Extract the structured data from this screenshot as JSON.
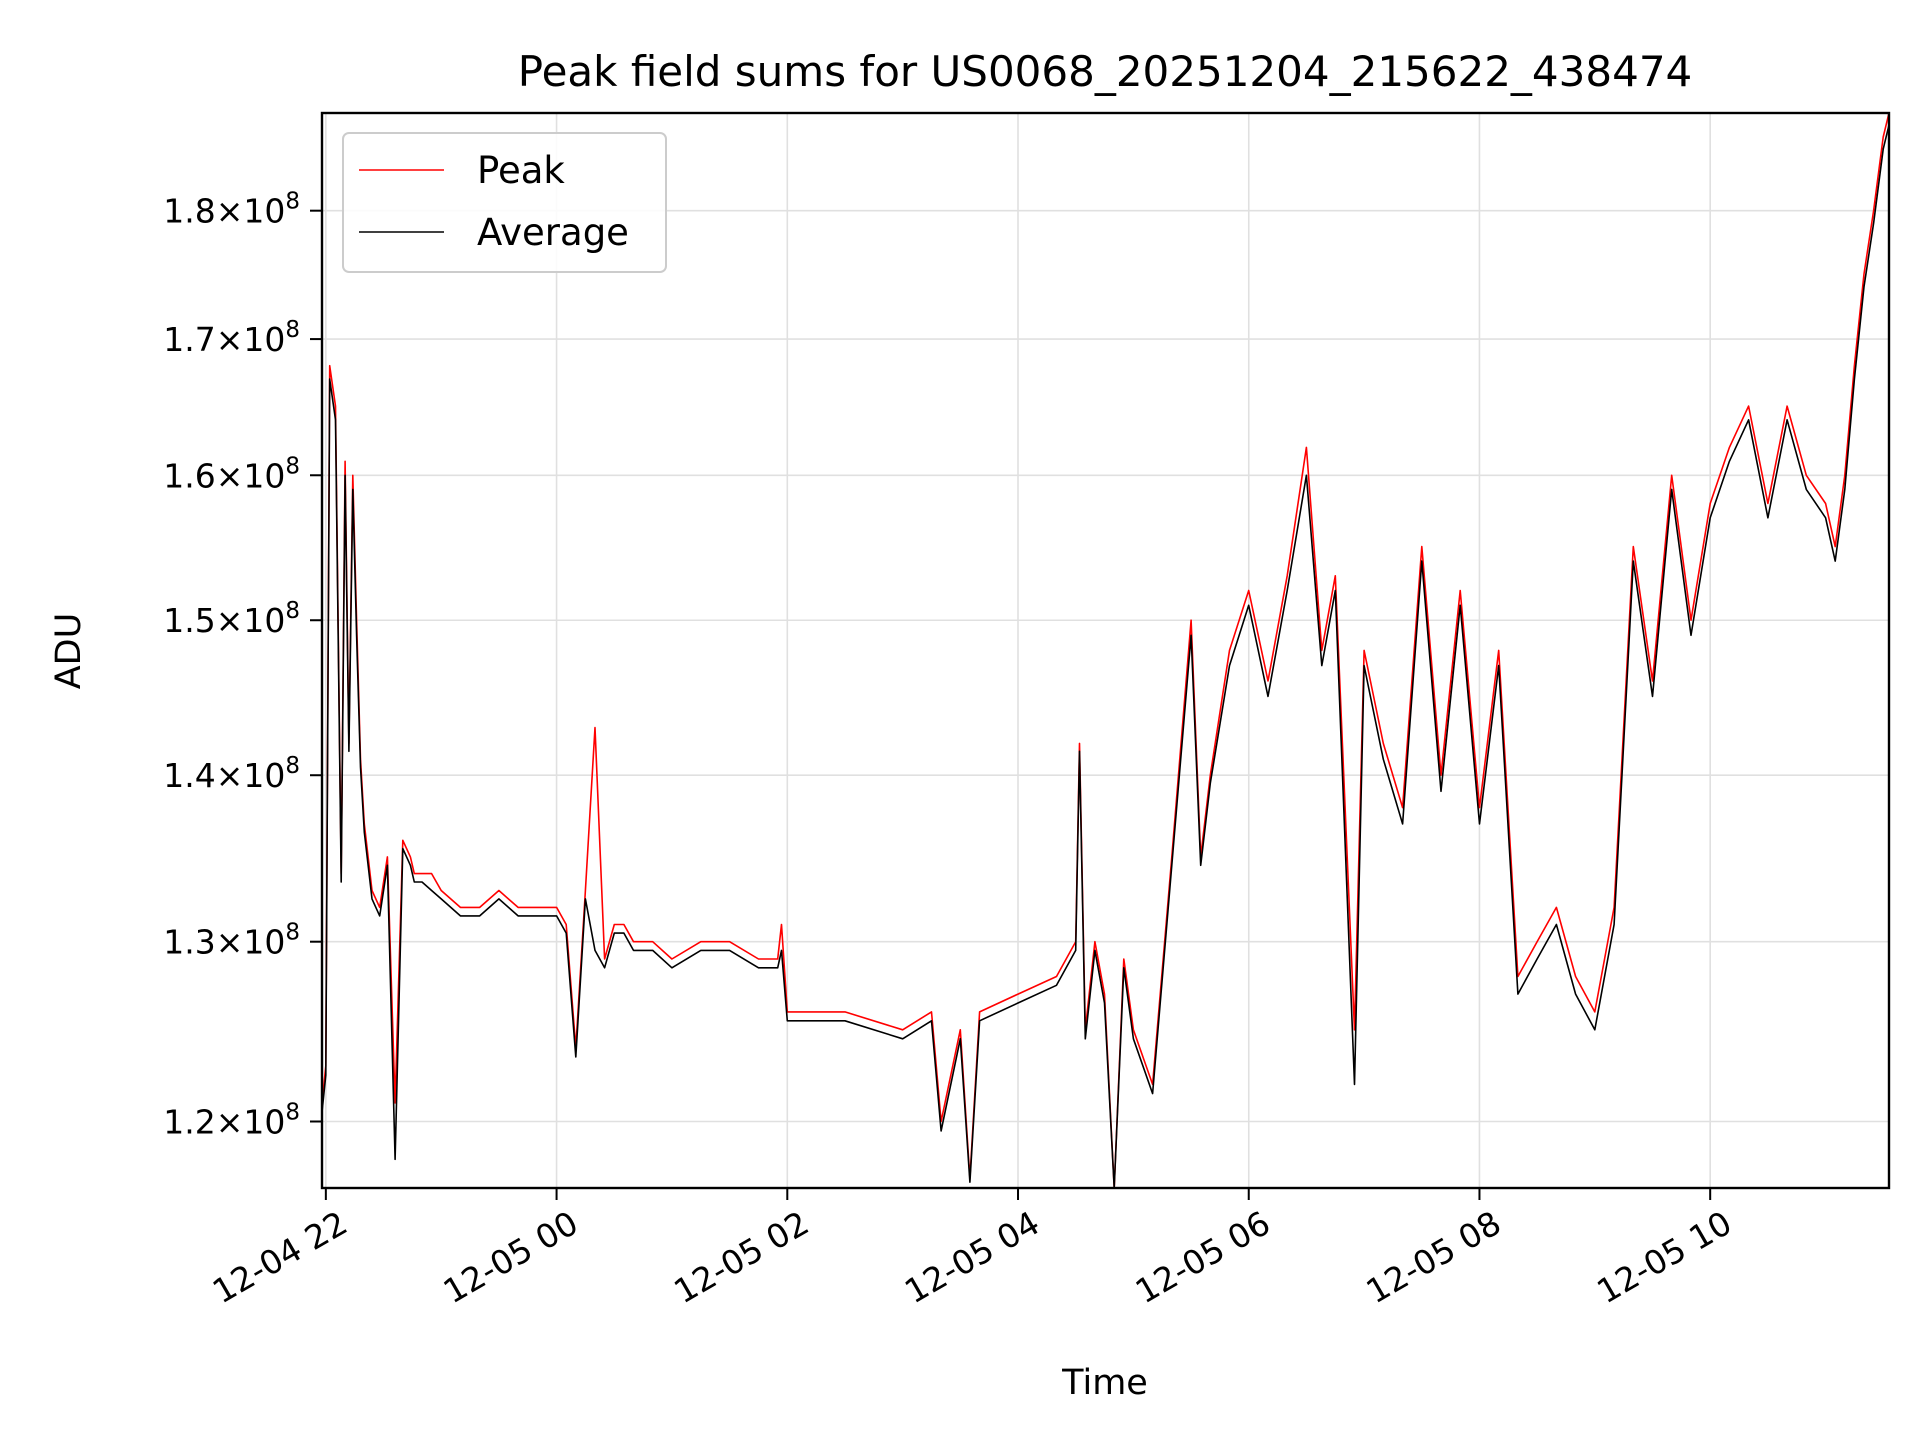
{
  "chart_data": {
    "type": "line",
    "title": "Peak field sums for US0068_20251204_215622_438474",
    "xlabel": "Time",
    "ylabel": "ADU",
    "y_scale": "log",
    "ylim": [
      116500000,
      188000000
    ],
    "xlim": [
      "12-04 21:58",
      "12-05 11:33"
    ],
    "grid": true,
    "legend": {
      "placement": "upper-left",
      "entries": [
        "Peak",
        "Average"
      ]
    },
    "colors": {
      "Peak": "#ff0000",
      "Average": "#000000",
      "grid": "#e0e0e0"
    },
    "x_ticks": [
      {
        "t": "12-04 22:00",
        "label": "12-04 22"
      },
      {
        "t": "12-05 00:00",
        "label": "12-05 00"
      },
      {
        "t": "12-05 02:00",
        "label": "12-05 02"
      },
      {
        "t": "12-05 04:00",
        "label": "12-05 04"
      },
      {
        "t": "12-05 06:00",
        "label": "12-05 06"
      },
      {
        "t": "12-05 08:00",
        "label": "12-05 08"
      },
      {
        "t": "12-05 10:00",
        "label": "12-05 10"
      }
    ],
    "y_ticks": [
      {
        "value": 120000000,
        "mantissa": "1.2",
        "exponent": "8"
      },
      {
        "value": 130000000,
        "mantissa": "1.3",
        "exponent": "8"
      },
      {
        "value": 140000000,
        "mantissa": "1.4",
        "exponent": "8"
      },
      {
        "value": 150000000,
        "mantissa": "1.5",
        "exponent": "8"
      },
      {
        "value": 160000000,
        "mantissa": "1.6",
        "exponent": "8"
      },
      {
        "value": 170000000,
        "mantissa": "1.7",
        "exponent": "8"
      },
      {
        "value": 180000000,
        "mantissa": "1.8",
        "exponent": "8"
      }
    ],
    "series": [
      {
        "name": "Peak",
        "x": [
          "12-04 21:58",
          "12-04 22:00",
          "12-04 22:02",
          "12-04 22:05",
          "12-04 22:08",
          "12-04 22:10",
          "12-04 22:12",
          "12-04 22:14",
          "12-04 22:16",
          "12-04 22:18",
          "12-04 22:20",
          "12-04 22:24",
          "12-04 22:28",
          "12-04 22:32",
          "12-04 22:36",
          "12-04 22:40",
          "12-04 22:44",
          "12-04 22:46",
          "12-04 22:48",
          "12-04 22:50",
          "12-04 22:55",
          "12-04 23:00",
          "12-04 23:10",
          "12-04 23:20",
          "12-04 23:30",
          "12-04 23:40",
          "12-04 23:50",
          "12-05 00:00",
          "12-05 00:05",
          "12-05 00:10",
          "12-05 00:15",
          "12-05 00:20",
          "12-05 00:25",
          "12-05 00:30",
          "12-05 00:35",
          "12-05 00:40",
          "12-05 00:50",
          "12-05 01:00",
          "12-05 01:15",
          "12-05 01:30",
          "12-05 01:45",
          "12-05 01:55",
          "12-05 01:57",
          "12-05 02:00",
          "12-05 02:30",
          "12-05 03:00",
          "12-05 03:15",
          "12-05 03:20",
          "12-05 03:30",
          "12-05 03:35",
          "12-05 03:40",
          "12-05 04:00",
          "12-05 04:20",
          "12-05 04:30",
          "12-05 04:32",
          "12-05 04:35",
          "12-05 04:40",
          "12-05 04:45",
          "12-05 04:50",
          "12-05 04:55",
          "12-05 05:00",
          "12-05 05:10",
          "12-05 05:20",
          "12-05 05:30",
          "12-05 05:35",
          "12-05 05:40",
          "12-05 05:50",
          "12-05 06:00",
          "12-05 06:10",
          "12-05 06:20",
          "12-05 06:30",
          "12-05 06:38",
          "12-05 06:45",
          "12-05 06:55",
          "12-05 07:00",
          "12-05 07:10",
          "12-05 07:20",
          "12-05 07:30",
          "12-05 07:40",
          "12-05 07:50",
          "12-05 08:00",
          "12-05 08:10",
          "12-05 08:20",
          "12-05 08:30",
          "12-05 08:40",
          "12-05 08:50",
          "12-05 09:00",
          "12-05 09:10",
          "12-05 09:20",
          "12-05 09:30",
          "12-05 09:40",
          "12-05 09:50",
          "12-05 10:00",
          "12-05 10:10",
          "12-05 10:20",
          "12-05 10:30",
          "12-05 10:40",
          "12-05 10:50",
          "12-05 11:00",
          "12-05 11:05",
          "12-05 11:10",
          "12-05 11:15",
          "12-05 11:20",
          "12-05 11:25",
          "12-05 11:30",
          "12-05 11:33"
        ],
        "values": [
          121000000,
          123000000,
          168000000,
          165000000,
          134000000,
          161000000,
          142000000,
          160000000,
          150000000,
          141000000,
          137000000,
          133000000,
          132000000,
          135000000,
          121000000,
          136000000,
          135000000,
          134000000,
          134000000,
          134000000,
          134000000,
          133000000,
          132000000,
          132000000,
          133000000,
          132000000,
          132000000,
          132000000,
          131000000,
          124000000,
          133000000,
          143000000,
          129000000,
          131000000,
          131000000,
          130000000,
          130000000,
          129000000,
          130000000,
          130000000,
          129000000,
          129000000,
          131000000,
          126000000,
          126000000,
          125000000,
          126000000,
          120000000,
          125000000,
          117000000,
          126000000,
          127000000,
          128000000,
          130000000,
          142000000,
          125000000,
          130000000,
          127000000,
          116500000,
          129000000,
          125000000,
          122000000,
          135000000,
          150000000,
          135000000,
          140000000,
          148000000,
          152000000,
          146000000,
          153000000,
          162000000,
          148000000,
          153000000,
          125000000,
          148000000,
          142000000,
          138000000,
          155000000,
          140000000,
          152000000,
          138000000,
          148000000,
          128000000,
          130000000,
          132000000,
          128000000,
          126000000,
          132000000,
          155000000,
          146000000,
          160000000,
          150000000,
          158000000,
          162000000,
          165000000,
          158000000,
          165000000,
          160000000,
          158000000,
          155000000,
          160000000,
          168000000,
          175000000,
          180000000,
          186000000,
          188000000
        ]
      },
      {
        "name": "Average",
        "x": [
          "12-04 21:58",
          "12-04 22:00",
          "12-04 22:02",
          "12-04 22:05",
          "12-04 22:08",
          "12-04 22:10",
          "12-04 22:12",
          "12-04 22:14",
          "12-04 22:16",
          "12-04 22:18",
          "12-04 22:20",
          "12-04 22:24",
          "12-04 22:28",
          "12-04 22:32",
          "12-04 22:36",
          "12-04 22:40",
          "12-04 22:44",
          "12-04 22:46",
          "12-04 22:48",
          "12-04 22:50",
          "12-04 22:55",
          "12-04 23:00",
          "12-04 23:10",
          "12-04 23:20",
          "12-04 23:30",
          "12-04 23:40",
          "12-04 23:50",
          "12-05 00:00",
          "12-05 00:05",
          "12-05 00:10",
          "12-05 00:15",
          "12-05 00:20",
          "12-05 00:25",
          "12-05 00:30",
          "12-05 00:35",
          "12-05 00:40",
          "12-05 00:50",
          "12-05 01:00",
          "12-05 01:15",
          "12-05 01:30",
          "12-05 01:45",
          "12-05 01:55",
          "12-05 01:57",
          "12-05 02:00",
          "12-05 02:30",
          "12-05 03:00",
          "12-05 03:15",
          "12-05 03:20",
          "12-05 03:30",
          "12-05 03:35",
          "12-05 03:40",
          "12-05 04:00",
          "12-05 04:20",
          "12-05 04:30",
          "12-05 04:32",
          "12-05 04:35",
          "12-05 04:40",
          "12-05 04:45",
          "12-05 04:50",
          "12-05 04:55",
          "12-05 05:00",
          "12-05 05:10",
          "12-05 05:20",
          "12-05 05:30",
          "12-05 05:35",
          "12-05 05:40",
          "12-05 05:50",
          "12-05 06:00",
          "12-05 06:10",
          "12-05 06:20",
          "12-05 06:30",
          "12-05 06:38",
          "12-05 06:45",
          "12-05 06:55",
          "12-05 07:00",
          "12-05 07:10",
          "12-05 07:20",
          "12-05 07:30",
          "12-05 07:40",
          "12-05 07:50",
          "12-05 08:00",
          "12-05 08:10",
          "12-05 08:20",
          "12-05 08:30",
          "12-05 08:40",
          "12-05 08:50",
          "12-05 09:00",
          "12-05 09:10",
          "12-05 09:20",
          "12-05 09:30",
          "12-05 09:40",
          "12-05 09:50",
          "12-05 10:00",
          "12-05 10:10",
          "12-05 10:20",
          "12-05 10:30",
          "12-05 10:40",
          "12-05 10:50",
          "12-05 11:00",
          "12-05 11:05",
          "12-05 11:10",
          "12-05 11:15",
          "12-05 11:20",
          "12-05 11:25",
          "12-05 11:30",
          "12-05 11:33"
        ],
        "values": [
          120500000,
          122500000,
          167000000,
          164000000,
          133500000,
          160000000,
          141500000,
          159000000,
          149000000,
          140500000,
          136500000,
          132500000,
          131500000,
          134500000,
          118000000,
          135500000,
          134500000,
          133500000,
          133500000,
          133500000,
          133000000,
          132500000,
          131500000,
          131500000,
          132500000,
          131500000,
          131500000,
          131500000,
          130500000,
          123500000,
          132500000,
          129500000,
          128500000,
          130500000,
          130500000,
          129500000,
          129500000,
          128500000,
          129500000,
          129500000,
          128500000,
          128500000,
          129500000,
          125500000,
          125500000,
          124500000,
          125500000,
          119500000,
          124500000,
          116800000,
          125500000,
          126500000,
          127500000,
          129500000,
          141500000,
          124500000,
          129500000,
          126500000,
          116500000,
          128500000,
          124500000,
          121500000,
          134500000,
          149000000,
          134500000,
          139500000,
          147000000,
          151000000,
          145000000,
          152000000,
          160000000,
          147000000,
          152000000,
          122000000,
          147000000,
          141000000,
          137000000,
          154000000,
          139000000,
          151000000,
          137000000,
          147000000,
          127000000,
          129000000,
          131000000,
          127000000,
          125000000,
          131000000,
          154000000,
          145000000,
          159000000,
          149000000,
          157000000,
          161000000,
          164000000,
          157000000,
          164000000,
          159000000,
          157000000,
          154000000,
          159000000,
          167000000,
          174000000,
          179000000,
          185000000,
          187000000
        ]
      }
    ]
  }
}
